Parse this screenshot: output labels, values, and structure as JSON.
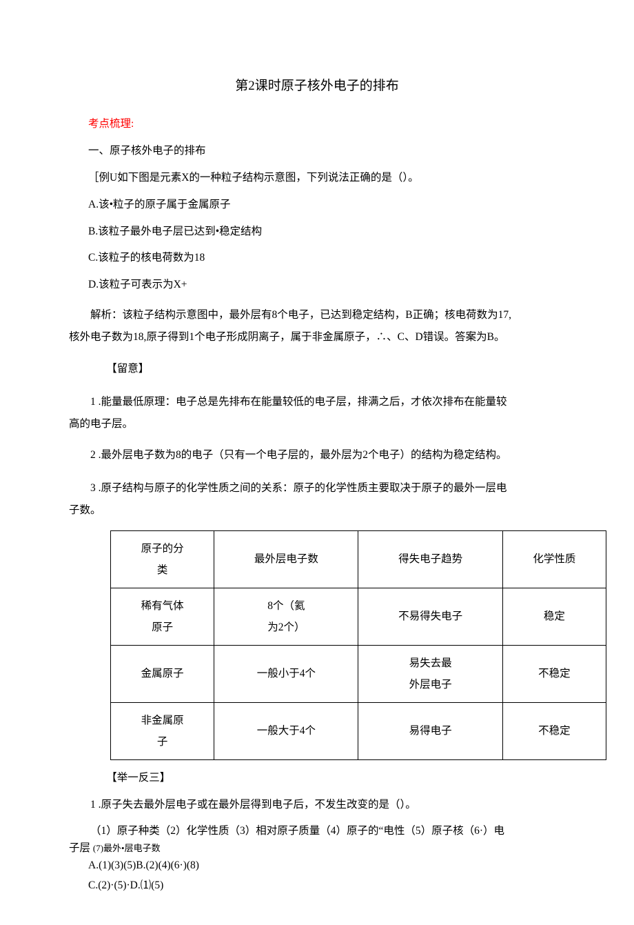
{
  "doc": {
    "title": "第2课时原子核外电子的排布",
    "kaodian_label": "考点梳理:",
    "section1_heading": "一、原子核外电子的排布",
    "example_intro": "［例U如下图是元素X的一种粒子结构示意图，下列说法正确的是（）。",
    "opt_a": "A.该•粒子的原子属于金属原子",
    "opt_b": "B.该粒子最外电子层已达到•稳定结构",
    "opt_c": "C.该粒子的核电荷数为18",
    "opt_d": "D.该粒子可表示为X+",
    "analysis_line1": "解析：该粒子结构示意图中，最外层有8个电子，已达到稳定结构，B正确；核电荷数为17,",
    "analysis_line2": "核外电子数为18,原子得到1个电子形成阴离子，属于非金属原子，∴、C、D错误。答案为B。",
    "attention_label": "【留意】",
    "attention_1_a": "1 .能量最低原理：电子总是先排布在能量较低的电子层，排满之后，才依次排布在能量较",
    "attention_1_b": "高的电子层。",
    "attention_2": "2 .最外层电子数为8的电子（只有一个电子层的，最外层为2个电子）的结构为稳定结构。",
    "attention_3_a": "3 .原子结构与原子的化学性质之间的关系：原子的化学性质主要取决于原子的最外一层电",
    "attention_3_b": "子数。",
    "table": {
      "h1": "原子的分类",
      "h2": "最外层电子数",
      "h3": "得失电子趋势",
      "h4": "化学性质",
      "r1c1": "稀有气体原子",
      "r1c2": "8个（氦为2个）",
      "r1c3": "不易得失电子",
      "r1c4": "稳定",
      "r2c1": "金属原子",
      "r2c2": "一般小于4个",
      "r2c3": "易失去最外层电子",
      "r2c4": "不稳定",
      "r3c1": "非金属原子",
      "r3c2": "一般大于4个",
      "r3c3": "易得电子",
      "r3c4": "不稳定"
    },
    "juyi_label": "【举一反三】",
    "q1_stem": "1 .原子失去最外层电子或在最外层得到电子后，不发生改变的是（）。",
    "q1_items_a": "（1）原子种类（2）化学性质（3）相对原子质量（4）原子的“电性（5）原子核（6·）电",
    "q1_items_b": "子层",
    "q1_items_c": "(7)最外•层电子数",
    "q1_opt_ab": "A.(1)(3)(5)B.(2)(4)(6·)(8)",
    "q1_opt_cd": "C.(2)·(5)·D.⑴(5)"
  },
  "style": {
    "highlight_color": "#ff0000",
    "body_text_color": "#000000",
    "background_color": "#ffffff",
    "base_fontsize": 15.5,
    "title_fontsize": 19,
    "table_border_color": "#000000"
  }
}
